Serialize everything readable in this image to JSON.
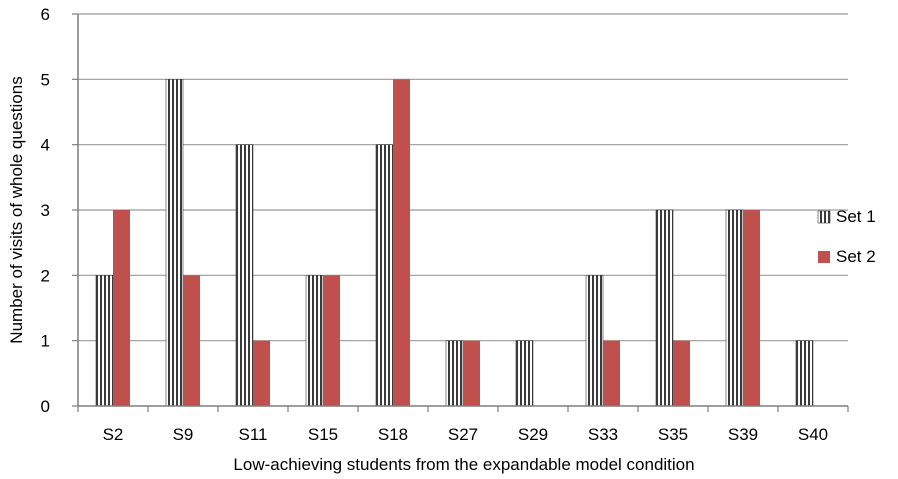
{
  "chart_data": {
    "type": "bar",
    "categories": [
      "S2",
      "S9",
      "S11",
      "S15",
      "S18",
      "S27",
      "S29",
      "S33",
      "S35",
      "S39",
      "S40"
    ],
    "series": [
      {
        "name": "Set 1",
        "values": [
          2,
          5,
          4,
          2,
          4,
          1,
          1,
          2,
          3,
          3,
          1
        ],
        "color": "#3a3a3a",
        "pattern": "vertical-stripes"
      },
      {
        "name": "Set 2",
        "values": [
          3,
          2,
          1,
          2,
          5,
          1,
          0,
          1,
          1,
          3,
          0
        ],
        "color": "#c0504d",
        "pattern": "solid"
      }
    ],
    "title": "",
    "xlabel": "Low-achieving students from the expandable model condition",
    "ylabel": "Number of visits of whole questions",
    "ylim": [
      0,
      6
    ],
    "yticks": [
      "0",
      "1",
      "2",
      "3",
      "4",
      "5",
      "6"
    ],
    "grid": true,
    "legend_position": "right"
  }
}
